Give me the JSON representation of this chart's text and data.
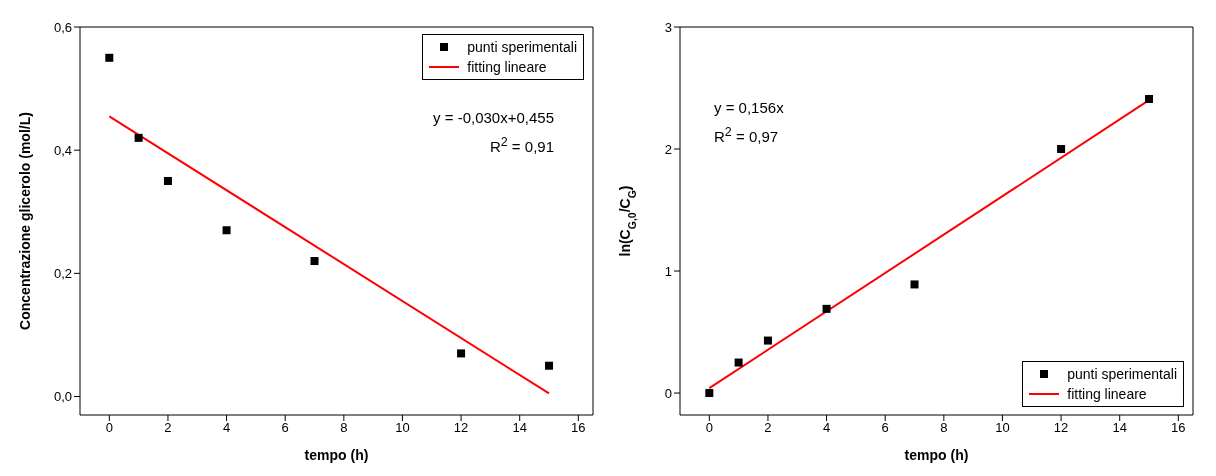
{
  "chart_data": [
    {
      "type": "scatter",
      "xlabel": "tempo (h)",
      "ylabel": "Concentrazione glicerolo (mol/L)",
      "legend": "top right",
      "annotations": [
        "y = -0,030x+0,455",
        "R$^{2}$ = 0,91"
      ],
      "series": [
        {
          "name": "punti sperimentali",
          "marker": "square",
          "color": "#000000",
          "x": [
            0,
            1,
            2,
            4,
            7,
            12,
            15
          ],
          "values": [
            0.55,
            0.42,
            0.35,
            0.27,
            0.22,
            0.07,
            0.05
          ]
        },
        {
          "name": "fitting lineare",
          "type": "line",
          "marker": "none",
          "color": "#ff0000",
          "x": [
            0,
            15
          ],
          "values": [
            0.455,
            0.005
          ]
        }
      ],
      "xlim": [
        -1,
        16.5
      ],
      "xticks": [
        0,
        2,
        4,
        6,
        8,
        10,
        12,
        14,
        16
      ],
      "ylim": [
        -0.03,
        0.6
      ],
      "yticks": [
        {
          "value": 0,
          "label": "0,0"
        },
        {
          "value": 0.2,
          "label": "0,2"
        },
        {
          "value": 0.4,
          "label": "0,4"
        },
        {
          "value": 0.6,
          "label": "0,6"
        }
      ],
      "grid": false
    },
    {
      "type": "scatter",
      "xlabel": "tempo (h)",
      "ylabel": "ln(C$_{G,0}$/C$_{G}$)",
      "legend": "bottom right",
      "annotations": [
        "y = 0,156x",
        "R$^{2}$ = 0,97"
      ],
      "series": [
        {
          "name": "punti sperimentali",
          "marker": "square",
          "color": "#000000",
          "x": [
            0,
            1,
            2,
            4,
            7,
            12,
            15
          ],
          "values": [
            0,
            0.25,
            0.43,
            0.69,
            0.89,
            2.0,
            2.41
          ]
        },
        {
          "name": "fitting lineare",
          "type": "line",
          "marker": "none",
          "color": "#ff0000",
          "x": [
            0,
            15
          ],
          "values": [
            0.04,
            2.4
          ]
        }
      ],
      "xlim": [
        -1,
        16.5
      ],
      "xticks": [
        0,
        2,
        4,
        6,
        8,
        10,
        12,
        14,
        16
      ],
      "ylim": [
        -0.18,
        3
      ],
      "yticks": [
        0,
        1,
        2,
        3
      ],
      "grid": false
    }
  ]
}
